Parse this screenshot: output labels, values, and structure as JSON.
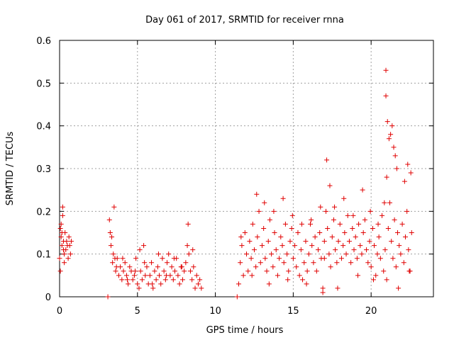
{
  "chart_data": {
    "type": "scatter",
    "title": "Day 061 of 2017, SRMTID for receiver rnna",
    "xlabel": "GPS time / hours",
    "ylabel": "SRMTID / TECUs",
    "xlim": [
      0,
      24
    ],
    "ylim": [
      0,
      0.6
    ],
    "xticks": [
      0,
      5,
      10,
      15,
      20
    ],
    "yticks": [
      0,
      0.1,
      0.2,
      0.3,
      0.4,
      0.5,
      0.6
    ],
    "xtick_labels": [
      "0",
      "5",
      "10",
      "15",
      "20"
    ],
    "ytick_labels": [
      "0",
      "0.1",
      "0.2",
      "0.3",
      "0.4",
      "0.5",
      "0.6"
    ],
    "grid": true,
    "marker": "+",
    "color": "#e00000",
    "series": [
      {
        "name": "SRMTID",
        "x": [
          0.0,
          0.05,
          0.1,
          0.15,
          0.2,
          0.25,
          0.3,
          0.35,
          0.4,
          0.45,
          0.5,
          0.55,
          0.6,
          0.65,
          0.7,
          0.75,
          0.1,
          0.2,
          0.3,
          0.05,
          0.25,
          0.15,
          3.1,
          11.4,
          3.2,
          3.3,
          3.4,
          3.5,
          3.6,
          3.7,
          3.8,
          3.9,
          4.0,
          4.1,
          4.2,
          4.3,
          4.4,
          4.5,
          4.6,
          4.7,
          4.8,
          4.9,
          5.0,
          5.1,
          5.2,
          5.3,
          5.4,
          5.5,
          5.6,
          5.7,
          5.8,
          5.9,
          6.0,
          6.1,
          6.2,
          6.3,
          6.4,
          6.5,
          6.6,
          6.7,
          6.8,
          6.9,
          7.0,
          7.1,
          7.2,
          7.3,
          7.4,
          7.5,
          7.6,
          7.7,
          7.8,
          7.9,
          8.0,
          8.1,
          8.2,
          8.3,
          8.4,
          8.5,
          8.6,
          8.7,
          8.8,
          8.9,
          9.0,
          9.1,
          3.25,
          3.45,
          3.65,
          4.05,
          4.35,
          4.85,
          5.15,
          5.45,
          5.95,
          6.35,
          6.85,
          7.35,
          7.85,
          8.25,
          8.55,
          3.35,
          3.55,
          11.5,
          11.6,
          11.7,
          11.8,
          11.9,
          12.0,
          12.1,
          12.2,
          12.3,
          12.4,
          12.5,
          12.6,
          12.7,
          12.8,
          12.9,
          13.0,
          13.1,
          13.2,
          13.3,
          13.4,
          13.5,
          13.6,
          13.7,
          13.8,
          13.9,
          14.0,
          14.1,
          14.2,
          14.3,
          14.4,
          14.5,
          14.6,
          14.7,
          14.8,
          14.9,
          15.0,
          15.1,
          15.2,
          15.3,
          15.4,
          15.5,
          15.6,
          15.7,
          15.8,
          15.9,
          16.0,
          16.1,
          16.2,
          16.3,
          16.4,
          16.5,
          16.6,
          16.7,
          16.8,
          16.9,
          17.0,
          17.1,
          17.2,
          17.3,
          17.4,
          17.5,
          17.6,
          17.7,
          17.8,
          17.9,
          18.0,
          18.1,
          18.2,
          18.3,
          18.4,
          18.5,
          18.6,
          18.7,
          18.8,
          18.9,
          19.0,
          19.1,
          19.2,
          19.3,
          19.4,
          19.5,
          19.6,
          19.7,
          19.8,
          19.9,
          20.0,
          20.1,
          20.2,
          20.3,
          20.4,
          20.5,
          20.6,
          20.7,
          20.8,
          20.9,
          21.0,
          21.1,
          21.2,
          21.3,
          21.4,
          21.5,
          21.6,
          21.7,
          21.8,
          21.9,
          22.0,
          22.1,
          22.2,
          22.3,
          22.4,
          22.5,
          22.6,
          12.65,
          13.15,
          13.75,
          14.35,
          14.95,
          15.55,
          16.15,
          16.75,
          17.15,
          17.35,
          17.65,
          18.25,
          18.85,
          19.45,
          19.95,
          20.45,
          20.95,
          20.95,
          21.05,
          21.15,
          21.25,
          21.35,
          21.45,
          21.55,
          21.65,
          22.15,
          22.35,
          22.55,
          21.0,
          20.85,
          17.0,
          16.9,
          11.65,
          12.35,
          13.45,
          14.65,
          15.85,
          17.85,
          19.15,
          20.15,
          21.75,
          22.45
        ],
        "y": [
          0.09,
          0.16,
          0.14,
          0.12,
          0.21,
          0.13,
          0.1,
          0.15,
          0.11,
          0.13,
          0.12,
          0.09,
          0.14,
          0.12,
          0.1,
          0.13,
          0.17,
          0.19,
          0.08,
          0.06,
          0.11,
          0.15,
          0.0,
          0.0,
          0.18,
          0.12,
          0.08,
          0.21,
          0.06,
          0.09,
          0.05,
          0.07,
          0.04,
          0.06,
          0.08,
          0.05,
          0.03,
          0.07,
          0.06,
          0.04,
          0.05,
          0.09,
          0.03,
          0.02,
          0.06,
          0.04,
          0.12,
          0.05,
          0.07,
          0.03,
          0.05,
          0.08,
          0.02,
          0.06,
          0.04,
          0.07,
          0.05,
          0.03,
          0.09,
          0.06,
          0.04,
          0.08,
          0.1,
          0.05,
          0.07,
          0.04,
          0.06,
          0.09,
          0.05,
          0.03,
          0.07,
          0.04,
          0.06,
          0.08,
          0.12,
          0.1,
          0.06,
          0.04,
          0.07,
          0.02,
          0.05,
          0.03,
          0.04,
          0.02,
          0.15,
          0.1,
          0.07,
          0.09,
          0.04,
          0.06,
          0.11,
          0.08,
          0.03,
          0.1,
          0.05,
          0.09,
          0.07,
          0.17,
          0.11,
          0.14,
          0.09,
          0.03,
          0.08,
          0.12,
          0.05,
          0.15,
          0.1,
          0.06,
          0.13,
          0.09,
          0.17,
          0.11,
          0.07,
          0.14,
          0.2,
          0.08,
          0.12,
          0.16,
          0.09,
          0.06,
          0.13,
          0.18,
          0.1,
          0.07,
          0.15,
          0.11,
          0.05,
          0.09,
          0.14,
          0.12,
          0.08,
          0.17,
          0.1,
          0.06,
          0.13,
          0.16,
          0.09,
          0.12,
          0.07,
          0.15,
          0.05,
          0.11,
          0.04,
          0.08,
          0.13,
          0.06,
          0.1,
          0.17,
          0.12,
          0.08,
          0.14,
          0.06,
          0.11,
          0.15,
          0.09,
          0.01,
          0.13,
          0.2,
          0.16,
          0.1,
          0.07,
          0.14,
          0.18,
          0.11,
          0.08,
          0.13,
          0.17,
          0.09,
          0.12,
          0.15,
          0.1,
          0.19,
          0.13,
          0.08,
          0.16,
          0.11,
          0.14,
          0.09,
          0.17,
          0.12,
          0.1,
          0.15,
          0.18,
          0.11,
          0.08,
          0.13,
          0.07,
          0.16,
          0.12,
          0.05,
          0.1,
          0.14,
          0.09,
          0.19,
          0.06,
          0.11,
          0.04,
          0.16,
          0.22,
          0.13,
          0.09,
          0.18,
          0.07,
          0.15,
          0.12,
          0.1,
          0.17,
          0.08,
          0.14,
          0.2,
          0.11,
          0.06,
          0.15,
          0.24,
          0.22,
          0.2,
          0.23,
          0.19,
          0.17,
          0.18,
          0.21,
          0.32,
          0.26,
          0.21,
          0.23,
          0.19,
          0.25,
          0.2,
          0.17,
          0.53,
          0.47,
          0.41,
          0.37,
          0.38,
          0.4,
          0.35,
          0.33,
          0.3,
          0.27,
          0.31,
          0.29,
          0.28,
          0.22,
          0.09,
          0.02,
          0.14,
          0.05,
          0.03,
          0.04,
          0.03,
          0.02,
          0.05,
          0.04,
          0.02,
          0.06
        ]
      }
    ]
  }
}
